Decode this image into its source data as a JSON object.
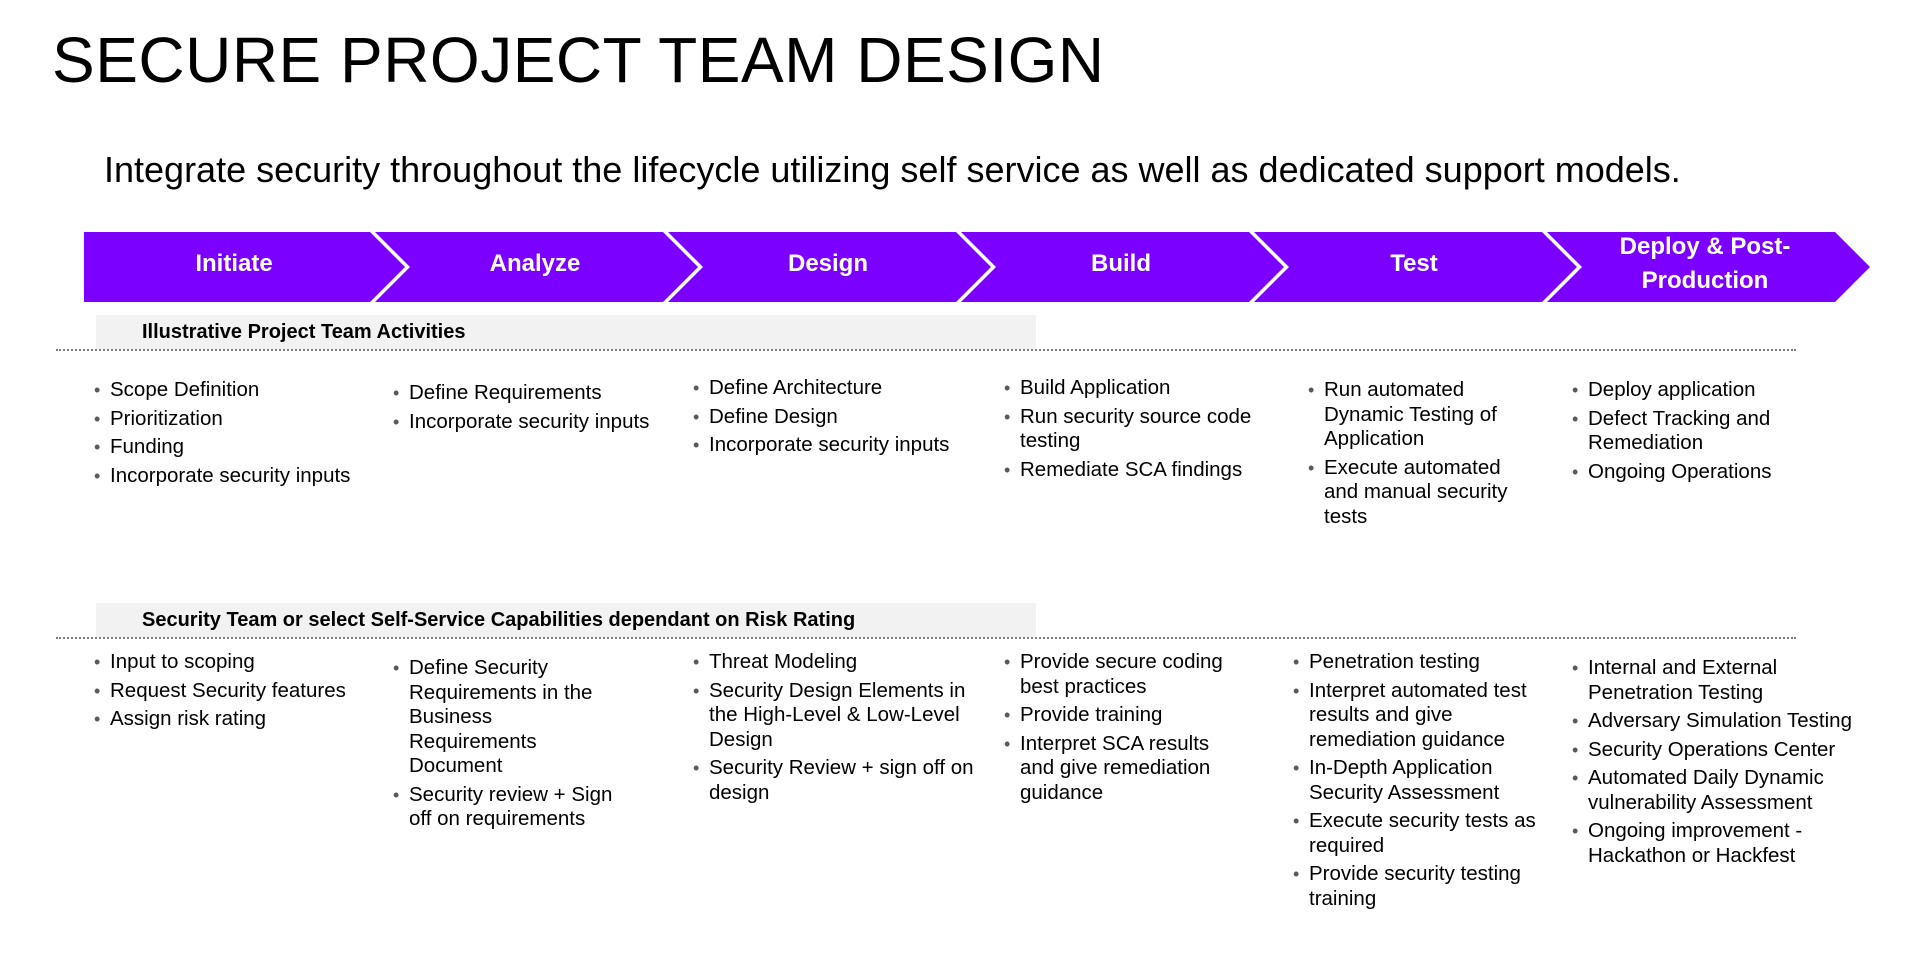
{
  "title": "SECURE PROJECT TEAM DESIGN",
  "subtitle": "Integrate security throughout the lifecycle utilizing self service as well as dedicated support models.",
  "colors": {
    "phase_fill": "#7b00ff",
    "phase_text": "#ffffff",
    "header_bg": "#f2f2f2"
  },
  "phases": [
    {
      "label": "Initiate"
    },
    {
      "label": "Analyze"
    },
    {
      "label": "Design"
    },
    {
      "label": "Build"
    },
    {
      "label": "Test"
    },
    {
      "label": "Deploy & Post-Production"
    }
  ],
  "sections": [
    {
      "header": "Illustrative Project Team Activities",
      "columns": [
        {
          "items": [
            "Scope Definition",
            "Prioritization",
            "Funding",
            "Incorporate security inputs"
          ]
        },
        {
          "items": [
            "Define Requirements",
            "Incorporate security inputs"
          ]
        },
        {
          "items": [
            "Define Architecture",
            "Define Design",
            "Incorporate security inputs"
          ]
        },
        {
          "items": [
            "Build Application",
            "Run security source code testing",
            "Remediate SCA findings"
          ]
        },
        {
          "items": [
            "Run automated Dynamic Testing of Application",
            "Execute automated and manual security tests"
          ]
        },
        {
          "items": [
            "Deploy application",
            "Defect Tracking and Remediation",
            "Ongoing Operations"
          ]
        }
      ]
    },
    {
      "header": "Security Team or select Self-Service Capabilities dependant on Risk Rating",
      "columns": [
        {
          "items": [
            "Input to scoping",
            "Request Security features",
            "Assign risk rating"
          ]
        },
        {
          "items": [
            "Define Security Requirements in the Business Requirements Document",
            "Security review + Sign off on requirements"
          ]
        },
        {
          "items": [
            "Threat Modeling",
            "Security Design Elements in the High-Level & Low-Level Design",
            "Security Review + sign off on design"
          ]
        },
        {
          "items": [
            "Provide secure coding best practices",
            "Provide training",
            "Interpret SCA results and give remediation guidance"
          ]
        },
        {
          "items": [
            "Penetration testing",
            "Interpret automated test results and give remediation guidance",
            "In-Depth Application Security Assessment",
            "Execute security tests as required",
            "Provide security testing training"
          ]
        },
        {
          "items": [
            "Internal and External Penetration Testing",
            "Adversary Simulation Testing",
            "Security Operations Center",
            "Automated Daily Dynamic vulnerability Assessment",
            "Ongoing improvement - Hackathon or Hackfest"
          ]
        }
      ]
    }
  ]
}
